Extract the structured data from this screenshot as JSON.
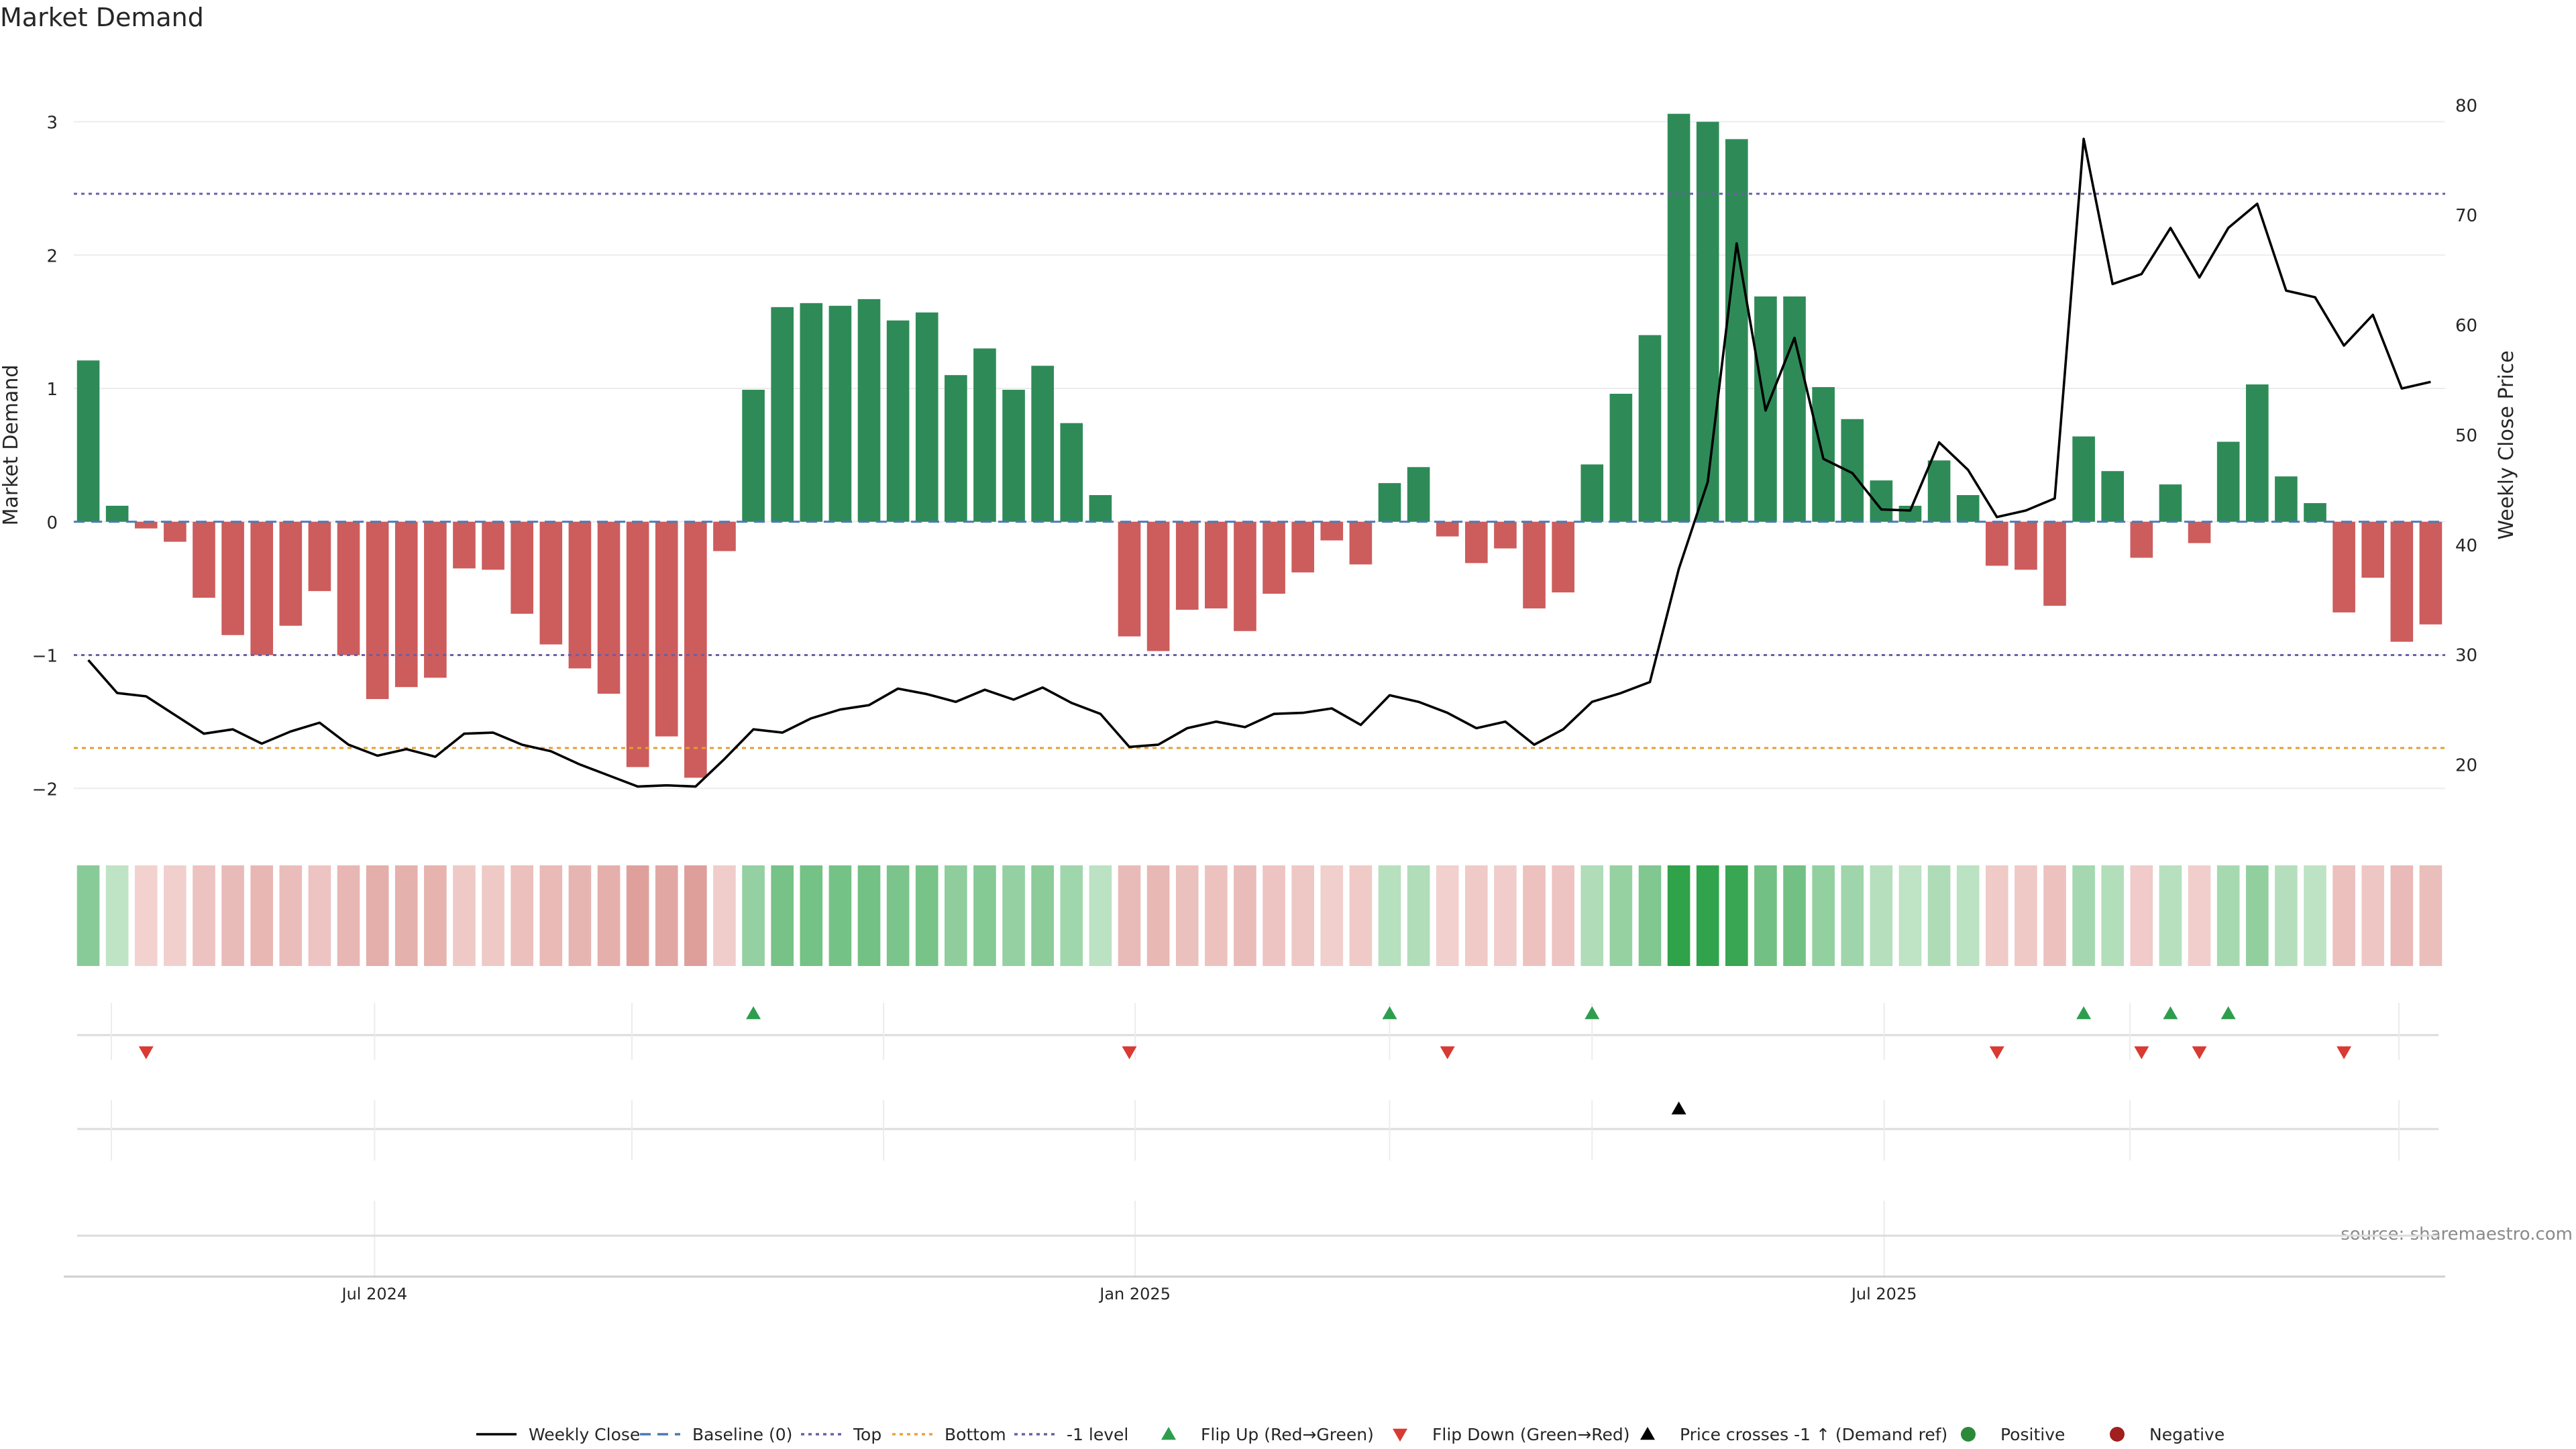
{
  "chart_data": {
    "type": "bar",
    "title": "Market Demand",
    "ylabel_left": "Market Demand",
    "ylabel_right": "Weekly Close Price",
    "ylim_left": [
      -2.2,
      3.35
    ],
    "yticks_left": [
      3,
      2,
      1,
      0,
      -1,
      -2
    ],
    "ylim_right": [
      15.4,
      82.7
    ],
    "yticks_right": [
      80,
      70,
      60,
      50,
      40,
      30,
      20
    ],
    "x_tick_labels": [
      "Jul 2024",
      "Jan 2025",
      "Jul 2025"
    ],
    "x_tick_index": [
      10.4,
      36.7,
      62.6
    ],
    "reference_lines": {
      "top": 2.46,
      "baseline": 0,
      "minus_one": -1,
      "bottom_price": 21.5
    },
    "series": [
      {
        "name": "Market Demand",
        "values": [
          1.21,
          0.12,
          -0.05,
          -0.15,
          -0.57,
          -0.85,
          -1.0,
          -0.78,
          -0.52,
          -1.0,
          -1.33,
          -1.24,
          -1.17,
          -0.35,
          -0.36,
          -0.69,
          -0.92,
          -1.1,
          -1.29,
          -1.84,
          -1.61,
          -1.92,
          -0.22,
          0.99,
          1.61,
          1.64,
          1.62,
          1.67,
          1.51,
          1.57,
          1.1,
          1.3,
          0.99,
          1.17,
          0.74,
          0.2,
          -0.86,
          -0.97,
          -0.66,
          -0.65,
          -0.82,
          -0.54,
          -0.38,
          -0.14,
          -0.32,
          0.29,
          0.41,
          -0.11,
          -0.31,
          -0.2,
          -0.65,
          -0.53,
          0.43,
          0.96,
          1.4,
          3.06,
          3.0,
          2.87,
          1.69,
          1.69,
          1.01,
          0.77,
          0.31,
          0.12,
          0.46,
          0.2,
          -0.33,
          -0.36,
          -0.63,
          0.64,
          0.38,
          -0.27,
          0.28,
          -0.16,
          0.6,
          1.03,
          0.34,
          0.14,
          -0.68,
          -0.42,
          -0.9,
          -0.77
        ]
      },
      {
        "name": "Weekly Close",
        "values": [
          29.5,
          26.5,
          26.2,
          24.5,
          22.8,
          23.2,
          21.9,
          23.0,
          23.8,
          21.8,
          20.8,
          21.4,
          20.7,
          22.8,
          22.9,
          21.8,
          21.2,
          20.0,
          19.0,
          18.0,
          18.1,
          18.0,
          20.5,
          23.2,
          22.9,
          24.2,
          25.0,
          25.4,
          26.9,
          26.4,
          25.7,
          26.8,
          25.9,
          27.0,
          25.6,
          24.6,
          21.6,
          21.8,
          23.3,
          23.9,
          23.4,
          24.6,
          24.7,
          25.1,
          23.6,
          26.3,
          25.7,
          24.7,
          23.3,
          23.9,
          21.8,
          23.2,
          25.7,
          26.5,
          27.5,
          37.8,
          45.7,
          67.4,
          52.2,
          58.8,
          47.8,
          46.5,
          43.2,
          43.1,
          49.3,
          46.8,
          42.5,
          43.1,
          44.2,
          76.9,
          63.7,
          64.6,
          68.8,
          64.3,
          68.8,
          71.0,
          63.1,
          62.5,
          58.1,
          60.9,
          54.2,
          54.8
        ]
      }
    ],
    "heatmap_strip": {
      "name": "Demand intensity",
      "source": "Market Demand series"
    },
    "flip_up_index": [
      23,
      45,
      52,
      69,
      72,
      74
    ],
    "flip_down_index": [
      2,
      36,
      47,
      66,
      71,
      73,
      78
    ],
    "price_cross_index": [
      55
    ],
    "legend": [
      {
        "label": "Weekly Close",
        "style": "line",
        "color": "#000000"
      },
      {
        "label": "Baseline (0)",
        "style": "dash",
        "color": "#4a7ab5"
      },
      {
        "label": "Top",
        "style": "dot",
        "color": "#6a5fa6"
      },
      {
        "label": "Bottom",
        "style": "dot",
        "color": "#e8a33d"
      },
      {
        "label": "-1 level",
        "style": "dot",
        "color": "#6a5fa6"
      },
      {
        "label": "Flip Up (Red→Green)",
        "style": "triangle-up",
        "color": "#2e9e4e"
      },
      {
        "label": "Flip Down (Green→Red)",
        "style": "triangle-down",
        "color": "#d93a34"
      },
      {
        "label": "Price crosses -1 ↑ (Demand ref)",
        "style": "triangle-up",
        "color": "#000000"
      },
      {
        "label": "Positive",
        "style": "circle",
        "color": "#2a8a3a"
      },
      {
        "label": "Negative",
        "style": "circle",
        "color": "#a11f1f"
      }
    ],
    "source": "source: sharemaestro.com",
    "colors": {
      "positive_bar": "#2e8b57",
      "negative_bar": "#cd5c5c",
      "price_line": "#000000"
    }
  }
}
